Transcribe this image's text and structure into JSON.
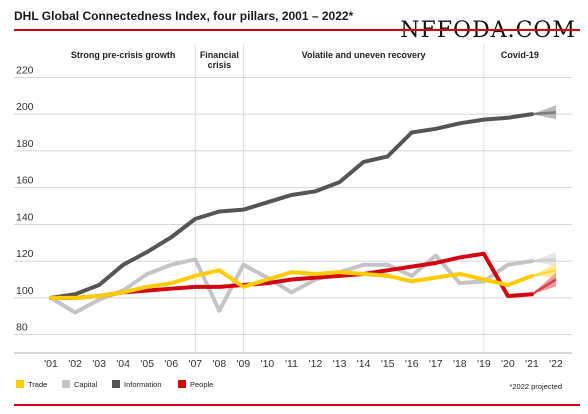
{
  "title": "DHL Global Connectedness Index, four pillars, 2001 – 2022*",
  "watermark": "NFFODA.COM",
  "footnote": "*2022 projected",
  "periods": [
    {
      "label": "Strong pre-crisis growth",
      "lines": [
        "Strong pre-crisis growth"
      ],
      "start": 2001,
      "end": 2007
    },
    {
      "label": "Financial crisis",
      "lines": [
        "Financial",
        "crisis"
      ],
      "start": 2007,
      "end": 2009
    },
    {
      "label": "Volatile and uneven recovery",
      "lines": [
        "Volatile and uneven recovery"
      ],
      "start": 2009,
      "end": 2019
    },
    {
      "label": "Covid-19",
      "lines": [
        "Covid-19"
      ],
      "start": 2019,
      "end": 2022
    }
  ],
  "chart_data": {
    "type": "line",
    "title": "DHL Global Connectedness Index, four pillars, 2001 – 2022*",
    "x": [
      2001,
      2002,
      2003,
      2004,
      2005,
      2006,
      2007,
      2008,
      2009,
      2010,
      2011,
      2012,
      2013,
      2014,
      2015,
      2016,
      2017,
      2018,
      2019,
      2020,
      2021,
      2022
    ],
    "x_tick_labels": [
      "'01",
      "'02",
      "'03",
      "'04",
      "'05",
      "'06",
      "'07",
      "'08",
      "'09",
      "'10",
      "'11",
      "'12",
      "'13",
      "'14",
      "'15",
      "'16",
      "'17",
      "'18",
      "'19",
      "'20",
      "'21",
      "'22"
    ],
    "ylim": [
      70,
      230
    ],
    "y_ticks": [
      80,
      100,
      120,
      140,
      160,
      180,
      200,
      220
    ],
    "grid": "horizontal",
    "legend_position": "bottom-left",
    "projected_from": 2021,
    "series": [
      {
        "name": "Trade",
        "color": "#ffcc00",
        "values": [
          100,
          100,
          101,
          103,
          106,
          108,
          112,
          115,
          106,
          110,
          114,
          113,
          114,
          113,
          112,
          109,
          111,
          113,
          110,
          107,
          112,
          115
        ]
      },
      {
        "name": "Capital",
        "color": "#c4c4c4",
        "values": [
          100,
          92,
          99,
          104,
          113,
          118,
          121,
          93,
          118,
          111,
          103,
          110,
          114,
          118,
          118,
          112,
          123,
          108,
          109,
          118,
          120,
          121
        ]
      },
      {
        "name": "Information",
        "color": "#555555",
        "values": [
          100,
          102,
          107,
          118,
          125,
          133,
          143,
          147,
          148,
          152,
          156,
          158,
          163,
          174,
          177,
          190,
          192,
          195,
          197,
          198,
          200,
          201
        ]
      },
      {
        "name": "People",
        "color": "#d40511",
        "values": [
          100,
          100,
          101,
          103,
          104,
          105,
          106,
          106,
          107,
          108,
          110,
          111,
          112,
          113,
          115,
          117,
          119,
          122,
          124,
          101,
          102,
          110
        ]
      }
    ]
  }
}
